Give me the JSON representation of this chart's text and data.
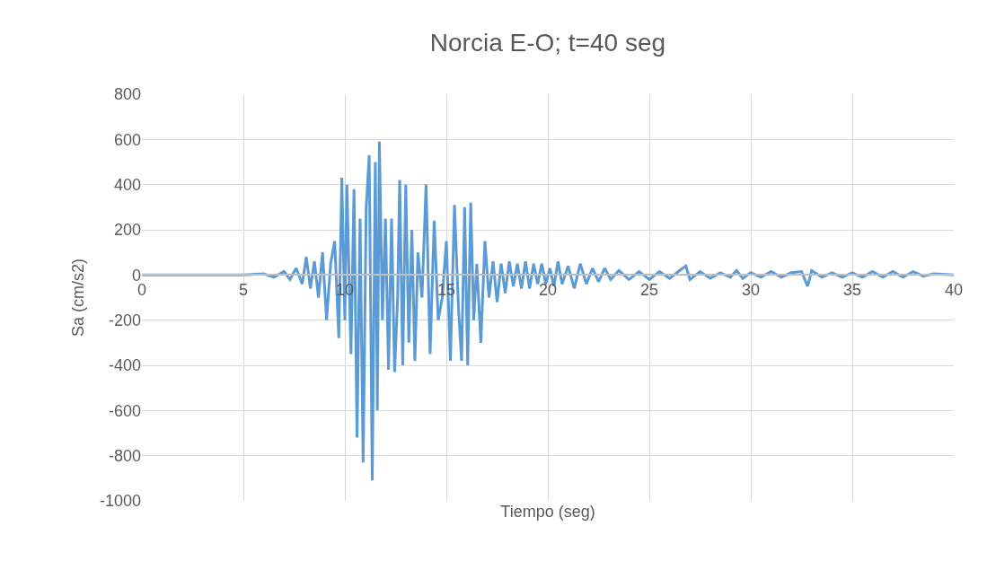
{
  "chart_data": {
    "type": "line",
    "title": "Norcia E-O; t=40 seg",
    "xlabel": "Tiempo (seg)",
    "ylabel": "Sa (cm/s2)",
    "x": [
      0,
      5,
      6,
      6.5,
      7,
      7.3,
      7.6,
      7.9,
      8.1,
      8.3,
      8.5,
      8.7,
      8.9,
      9.1,
      9.3,
      9.5,
      9.7,
      9.85,
      10,
      10.1,
      10.3,
      10.45,
      10.6,
      10.75,
      10.9,
      11.05,
      11.2,
      11.35,
      11.5,
      11.6,
      11.7,
      11.85,
      12,
      12.15,
      12.3,
      12.45,
      12.6,
      12.7,
      12.85,
      13,
      13.15,
      13.3,
      13.45,
      13.6,
      13.8,
      14,
      14.2,
      14.4,
      14.6,
      14.8,
      15,
      15.2,
      15.4,
      15.6,
      15.75,
      15.9,
      16.05,
      16.2,
      16.35,
      16.5,
      16.7,
      16.9,
      17.1,
      17.3,
      17.5,
      17.7,
      17.9,
      18.1,
      18.3,
      18.5,
      18.7,
      18.9,
      19.1,
      19.3,
      19.5,
      19.7,
      19.9,
      20.1,
      20.3,
      20.5,
      20.7,
      21,
      21.3,
      21.6,
      21.9,
      22.2,
      22.5,
      22.8,
      23.1,
      23.5,
      24,
      24.5,
      25,
      25.5,
      26,
      26.5,
      26.8,
      27,
      27.5,
      28,
      28.5,
      29,
      29.3,
      29.6,
      30,
      30.5,
      31,
      31.5,
      32,
      32.5,
      32.8,
      33,
      33.5,
      34,
      34.5,
      35,
      35.5,
      36,
      36.5,
      37,
      37.5,
      38,
      38.5,
      39,
      40
    ],
    "series": [
      {
        "color": "#5b9bd5",
        "values": [
          0,
          0,
          5,
          -10,
          15,
          -20,
          30,
          -40,
          80,
          -60,
          60,
          -100,
          100,
          -200,
          50,
          150,
          -280,
          430,
          -200,
          400,
          -350,
          380,
          -720,
          250,
          -830,
          300,
          530,
          -910,
          500,
          -600,
          590,
          -200,
          250,
          -420,
          250,
          -430,
          -100,
          420,
          -400,
          400,
          -300,
          200,
          -380,
          100,
          -100,
          400,
          -350,
          240,
          -200,
          -100,
          150,
          -380,
          310,
          -150,
          -380,
          300,
          -400,
          320,
          -200,
          50,
          -300,
          150,
          -100,
          60,
          -120,
          50,
          -80,
          60,
          -50,
          50,
          -60,
          60,
          -60,
          50,
          -40,
          50,
          -40,
          30,
          -50,
          60,
          -40,
          40,
          -60,
          50,
          -40,
          30,
          -30,
          30,
          -20,
          20,
          -20,
          15,
          -20,
          15,
          -15,
          20,
          40,
          -20,
          15,
          -15,
          10,
          -10,
          20,
          -15,
          10,
          -10,
          15,
          -10,
          10,
          15,
          -50,
          20,
          -10,
          10,
          -10,
          10,
          -10,
          15,
          -10,
          15,
          -10,
          15,
          -5,
          5,
          0
        ]
      }
    ],
    "xlim": [
      0,
      40
    ],
    "xticks": [
      0,
      5,
      10,
      15,
      20,
      25,
      30,
      35,
      40
    ],
    "ylim": [
      -1000,
      800
    ],
    "yticks": [
      -1000,
      -800,
      -600,
      -400,
      -200,
      0,
      200,
      400,
      600,
      800
    ],
    "grid": true,
    "legend": false,
    "marker": "none",
    "line_style": "solid"
  }
}
